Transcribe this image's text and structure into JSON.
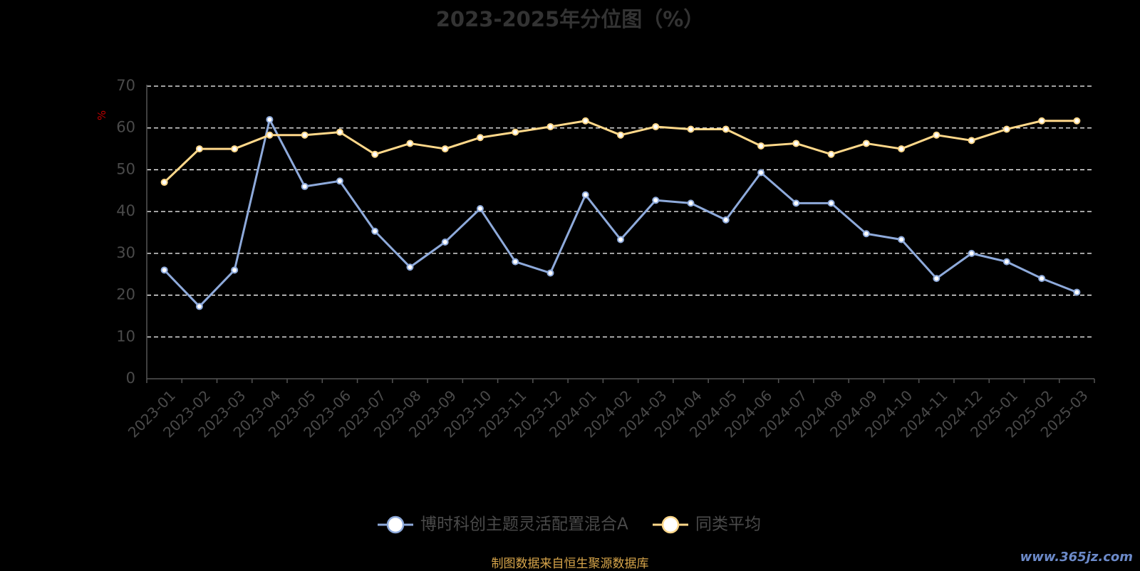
{
  "chart_data": {
    "type": "line",
    "title": "2023-2025年分位图（%）",
    "ylabel": "%",
    "ylim": [
      0,
      70
    ],
    "yticks": [
      0,
      10,
      20,
      30,
      40,
      50,
      60,
      70
    ],
    "grid": true,
    "legend_position": "bottom",
    "categories": [
      "2023-01",
      "2023-02",
      "2023-03",
      "2023-04",
      "2023-05",
      "2023-06",
      "2023-07",
      "2023-08",
      "2023-09",
      "2023-10",
      "2023-11",
      "2023-12",
      "2024-01",
      "2024-02",
      "2024-03",
      "2024-04",
      "2024-05",
      "2024-06",
      "2024-07",
      "2024-08",
      "2024-09",
      "2024-10",
      "2024-11",
      "2024-12",
      "2025-01",
      "2025-02",
      "2025-03"
    ],
    "series": [
      {
        "name": "博时科创主题灵活配置混合A",
        "color": "#8eaadb",
        "values": [
          26,
          17.3,
          26,
          62,
          46,
          47.3,
          35.3,
          26.7,
          32.7,
          40.7,
          28,
          25.3,
          44,
          33.3,
          42.7,
          42,
          38,
          49.3,
          42,
          42,
          34.7,
          33.3,
          24,
          30,
          28,
          24,
          20.7
        ]
      },
      {
        "name": "同类平均",
        "color": "#ffd88a",
        "values": [
          47,
          55,
          55,
          58.3,
          58.3,
          59,
          53.7,
          56.3,
          55,
          57.7,
          59,
          60.3,
          61.7,
          58.3,
          60.3,
          59.7,
          59.7,
          55.7,
          56.3,
          53.7,
          56.3,
          55,
          58.3,
          57,
          59.7,
          61.7,
          61.7
        ]
      }
    ]
  },
  "footer": {
    "source": "制图数据来自恒生聚源数据库",
    "watermark": "www.365jz.com"
  }
}
